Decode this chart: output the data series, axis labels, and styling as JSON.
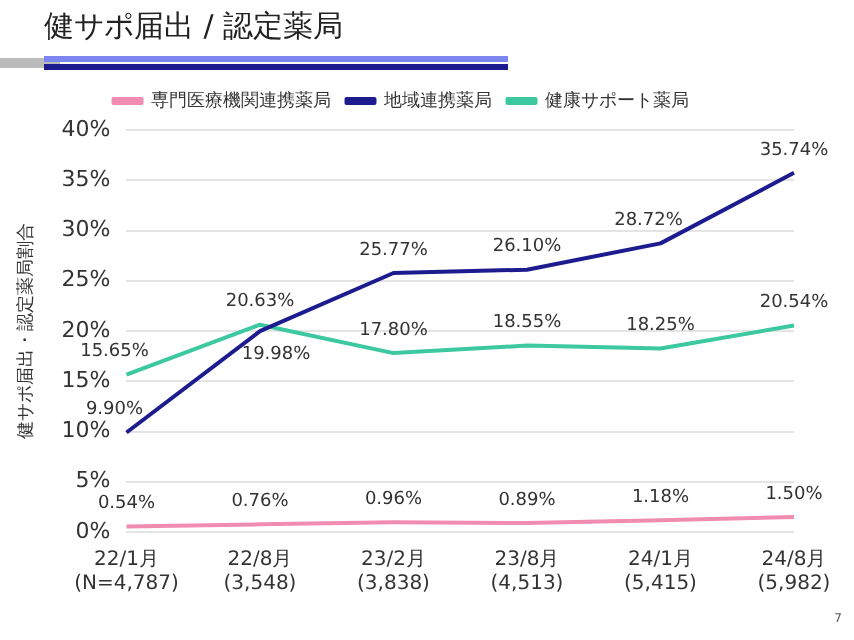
{
  "chart_data": {
    "type": "line",
    "title": "健サポ届出 / 認定薬局",
    "ylabel": "健サポ届出・認定薬局割合",
    "categories": [
      "22/1月\n(N=4,787)",
      "22/8月\n(3,548)",
      "23/2月\n(3,838)",
      "23/8月\n(4,513)",
      "24/1月\n(5,415)",
      "24/8月\n(5,982)"
    ],
    "series": [
      {
        "name": "専門医療機関連携薬局",
        "color": "#f08cb0",
        "values": [
          0.54,
          0.76,
          0.96,
          0.89,
          1.18,
          1.5
        ],
        "value_labels": [
          "0.54%",
          "0.76%",
          "0.96%",
          "0.89%",
          "1.18%",
          "1.50%"
        ]
      },
      {
        "name": "地域連携薬局",
        "color": "#1c1c8f",
        "values": [
          9.9,
          19.98,
          25.77,
          26.1,
          28.72,
          35.74
        ],
        "value_labels": [
          "9.90%",
          "19.98%",
          "25.77%",
          "26.10%",
          "28.72%",
          "35.74%"
        ]
      },
      {
        "name": "健康サポート薬局",
        "color": "#3cc8a0",
        "values": [
          15.65,
          20.63,
          17.8,
          18.55,
          18.25,
          20.54
        ],
        "value_labels": [
          "15.65%",
          "20.63%",
          "17.80%",
          "18.55%",
          "18.25%",
          "20.54%"
        ]
      }
    ],
    "ylim": [
      0,
      40
    ],
    "yticks": [
      {
        "value": 0,
        "label": "0%"
      },
      {
        "value": 5,
        "label": "5%"
      },
      {
        "value": 10,
        "label": "10%"
      },
      {
        "value": 15,
        "label": "15%"
      },
      {
        "value": 20,
        "label": "20%"
      },
      {
        "value": 25,
        "label": "25%"
      },
      {
        "value": 30,
        "label": "30%"
      },
      {
        "value": 35,
        "label": "35%"
      },
      {
        "value": 40,
        "label": "40%"
      }
    ],
    "grid": "y",
    "legend": "top",
    "marker": "none",
    "line_style": "solid",
    "annotations": [
      "7"
    ]
  }
}
